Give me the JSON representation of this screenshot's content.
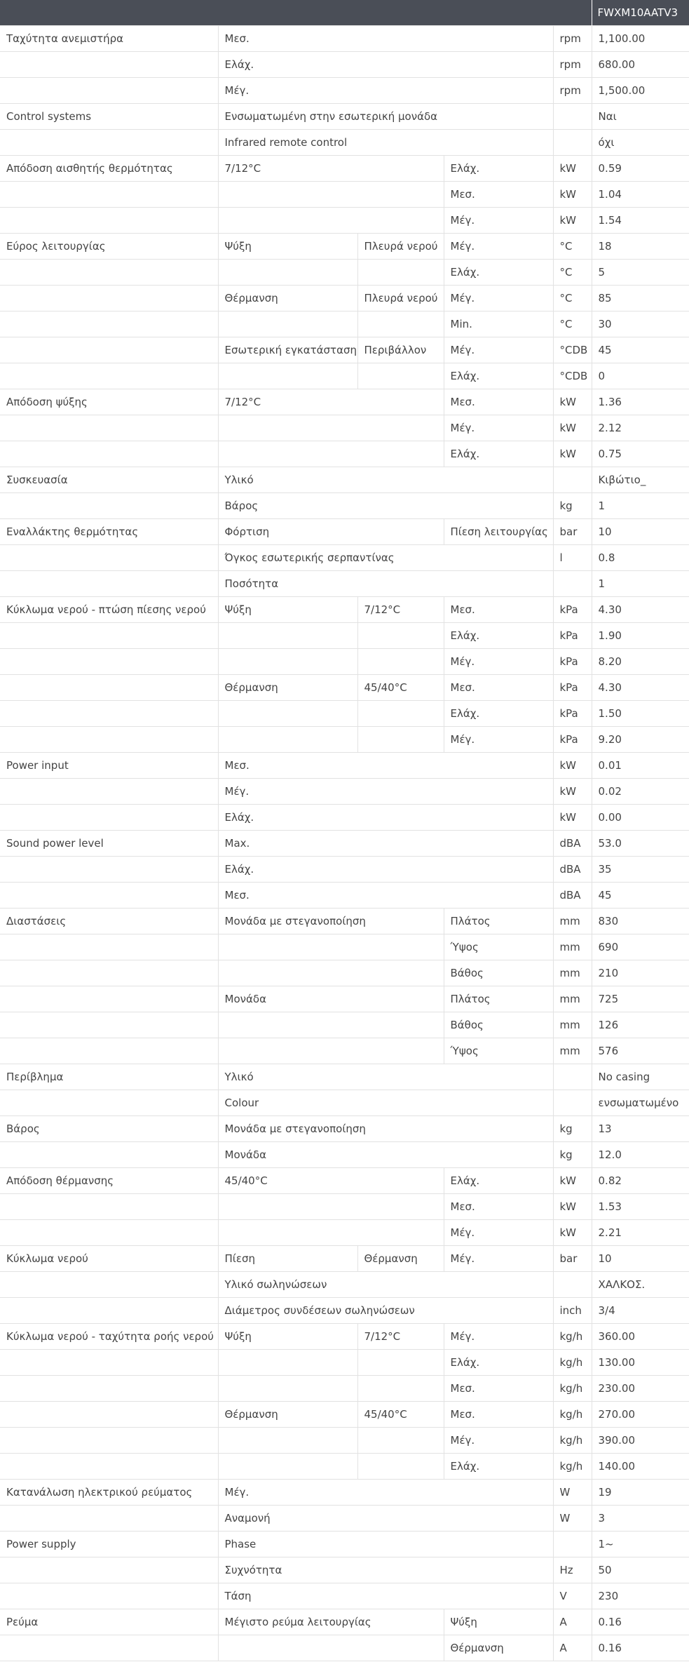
{
  "header": {
    "model": "FWXM10AATV3"
  },
  "rows": [
    [
      "Ταχύτητα ανεμιστήρα",
      "Μεσ.",
      null,
      null,
      "rpm",
      "1,100.00"
    ],
    [
      "",
      "Ελάχ.",
      null,
      null,
      "rpm",
      "680.00"
    ],
    [
      "",
      "Μέγ.",
      null,
      null,
      "rpm",
      "1,500.00"
    ],
    [
      "Control systems",
      "Ενσωματωμένη στην εσωτερική μονάδα",
      null,
      null,
      "",
      "Ναι"
    ],
    [
      "",
      "Infrared remote control",
      null,
      null,
      "",
      "όχι"
    ],
    [
      "Απόδοση αισθητής θερμότητας",
      "7/12°C",
      null,
      "Ελάχ.",
      "kW",
      "0.59"
    ],
    [
      "",
      "",
      null,
      "Μεσ.",
      "kW",
      "1.04"
    ],
    [
      "",
      "",
      null,
      "Μέγ.",
      "kW",
      "1.54"
    ],
    [
      "Εύρος λειτουργίας",
      "Ψύξη",
      "Πλευρά νερού",
      "Μέγ.",
      "°C",
      "18"
    ],
    [
      "",
      "",
      "",
      "Ελάχ.",
      "°C",
      "5"
    ],
    [
      "",
      "Θέρμανση",
      "Πλευρά νερού",
      "Μέγ.",
      "°C",
      "85"
    ],
    [
      "",
      "",
      "",
      "Min.",
      "°C",
      "30"
    ],
    [
      "",
      "Εσωτερική εγκατάσταση",
      "Περιβάλλον",
      "Μέγ.",
      "°CDB",
      "45"
    ],
    [
      "",
      "",
      "",
      "Ελάχ.",
      "°CDB",
      "0"
    ],
    [
      "Απόδοση ψύξης",
      "7/12°C",
      null,
      "Μεσ.",
      "kW",
      "1.36"
    ],
    [
      "",
      "",
      null,
      "Μέγ.",
      "kW",
      "2.12"
    ],
    [
      "",
      "",
      null,
      "Ελάχ.",
      "kW",
      "0.75"
    ],
    [
      "Συσκευασία",
      "Υλικό",
      null,
      null,
      "",
      "Κιβώτιο_"
    ],
    [
      "",
      "Βάρος",
      null,
      null,
      "kg",
      "1"
    ],
    [
      "Εναλλάκτης θερμότητας",
      "Φόρτιση",
      null,
      "Πίεση λειτουργίας",
      "bar",
      "10"
    ],
    [
      "",
      "Όγκος εσωτερικής σερπαντίνας",
      null,
      null,
      "l",
      "0.8"
    ],
    [
      "",
      "Ποσότητα",
      null,
      null,
      "",
      "1"
    ],
    [
      "Κύκλωμα νερού - πτώση πίεσης νερού",
      "Ψύξη",
      "7/12°C",
      "Μεσ.",
      "kPa",
      "4.30"
    ],
    [
      "",
      "",
      "",
      "Ελάχ.",
      "kPa",
      "1.90"
    ],
    [
      "",
      "",
      "",
      "Μέγ.",
      "kPa",
      "8.20"
    ],
    [
      "",
      "Θέρμανση",
      "45/40°C",
      "Μεσ.",
      "kPa",
      "4.30"
    ],
    [
      "",
      "",
      "",
      "Ελάχ.",
      "kPa",
      "1.50"
    ],
    [
      "",
      "",
      "",
      "Μέγ.",
      "kPa",
      "9.20"
    ],
    [
      "Power input",
      "Μεσ.",
      null,
      null,
      "kW",
      "0.01"
    ],
    [
      "",
      "Μέγ.",
      null,
      null,
      "kW",
      "0.02"
    ],
    [
      "",
      "Ελάχ.",
      null,
      null,
      "kW",
      "0.00"
    ],
    [
      "Sound power level",
      "Max.",
      null,
      null,
      "dBA",
      "53.0"
    ],
    [
      "",
      "Ελάχ.",
      null,
      null,
      "dBA",
      "35"
    ],
    [
      "",
      "Μεσ.",
      null,
      null,
      "dBA",
      "45"
    ],
    [
      "Διαστάσεις",
      "Μονάδα με στεγανοποίηση",
      null,
      "Πλάτος",
      "mm",
      "830"
    ],
    [
      "",
      "",
      null,
      "Ύψος",
      "mm",
      "690"
    ],
    [
      "",
      "",
      null,
      "Βάθος",
      "mm",
      "210"
    ],
    [
      "",
      "Μονάδα",
      null,
      "Πλάτος",
      "mm",
      "725"
    ],
    [
      "",
      "",
      null,
      "Βάθος",
      "mm",
      "126"
    ],
    [
      "",
      "",
      null,
      "Ύψος",
      "mm",
      "576"
    ],
    [
      "Περίβλημα",
      "Υλικό",
      null,
      null,
      "",
      "No casing"
    ],
    [
      "",
      "Colour",
      null,
      null,
      "",
      "ενσωματωμένο"
    ],
    [
      "Βάρος",
      "Μονάδα με στεγανοποίηση",
      null,
      null,
      "kg",
      "13"
    ],
    [
      "",
      "Μονάδα",
      null,
      null,
      "kg",
      "12.0"
    ],
    [
      "Απόδοση θέρμανσης",
      "45/40°C",
      null,
      "Ελάχ.",
      "kW",
      "0.82"
    ],
    [
      "",
      "",
      null,
      "Μεσ.",
      "kW",
      "1.53"
    ],
    [
      "",
      "",
      null,
      "Μέγ.",
      "kW",
      "2.21"
    ],
    [
      "Κύκλωμα νερού",
      "Πίεση",
      "Θέρμανση",
      "Μέγ.",
      "bar",
      "10"
    ],
    [
      "",
      "Υλικό σωληνώσεων",
      null,
      null,
      "",
      "ΧΑΛΚΟΣ."
    ],
    [
      "",
      "Διάμετρος συνδέσεων σωληνώσεων",
      null,
      null,
      "inch",
      "3/4"
    ],
    [
      "Κύκλωμα νερού - ταχύτητα ροής νερού",
      "Ψύξη",
      "7/12°C",
      "Μέγ.",
      "kg/h",
      "360.00"
    ],
    [
      "",
      "",
      "",
      "Ελάχ.",
      "kg/h",
      "130.00"
    ],
    [
      "",
      "",
      "",
      "Μεσ.",
      "kg/h",
      "230.00"
    ],
    [
      "",
      "Θέρμανση",
      "45/40°C",
      "Μεσ.",
      "kg/h",
      "270.00"
    ],
    [
      "",
      "",
      "",
      "Μέγ.",
      "kg/h",
      "390.00"
    ],
    [
      "",
      "",
      "",
      "Ελάχ.",
      "kg/h",
      "140.00"
    ],
    [
      "Κατανάλωση ηλεκτρικού ρεύματος",
      "Μέγ.",
      null,
      null,
      "W",
      "19"
    ],
    [
      "",
      "Αναμονή",
      null,
      null,
      "W",
      "3"
    ],
    [
      "Power supply",
      "Phase",
      null,
      null,
      "",
      "1~"
    ],
    [
      "",
      "Συχνότητα",
      null,
      null,
      "Hz",
      "50"
    ],
    [
      "",
      "Τάση",
      null,
      null,
      "V",
      "230"
    ],
    [
      "Ρεύμα",
      "Μέγιστο ρεύμα λειτουργίας",
      null,
      "Ψύξη",
      "A",
      "0.16"
    ],
    [
      "",
      "",
      null,
      "Θέρμανση",
      "A",
      "0.16"
    ]
  ]
}
